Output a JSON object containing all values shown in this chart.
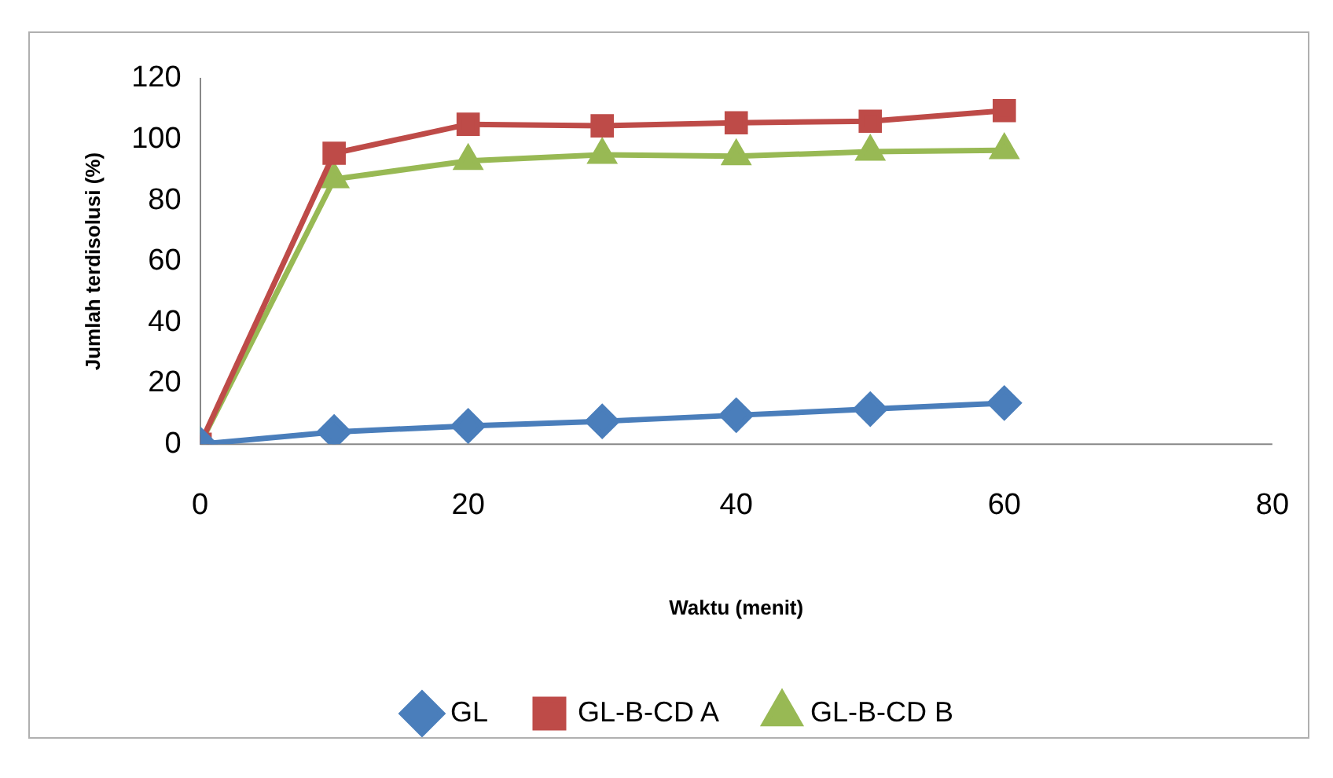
{
  "chart_data": {
    "type": "line",
    "xlabel": "Waktu (menit)",
    "ylabel": "Jumlah terdisolusi (%)",
    "x": [
      0,
      10,
      20,
      30,
      40,
      50,
      60
    ],
    "series": [
      {
        "name": "GL",
        "color": "#4a7ebb",
        "marker": "diamond",
        "values": [
          0,
          4,
          6,
          7.5,
          9.5,
          11.5,
          13.5
        ]
      },
      {
        "name": "GL-B-CD A",
        "color": "#be4b48",
        "marker": "square",
        "values": [
          0,
          95.5,
          105,
          104.5,
          105.5,
          106,
          109.5
        ]
      },
      {
        "name": "GL-B-CD B",
        "color": "#98b954",
        "marker": "triangle",
        "values": [
          0,
          87,
          93,
          95,
          94.5,
          96,
          96.5
        ]
      }
    ],
    "xlim": [
      0,
      80
    ],
    "xticks": [
      0,
      20,
      40,
      60,
      80
    ],
    "ylim": [
      0,
      120
    ],
    "yticks": [
      0,
      20,
      40,
      60,
      80,
      100,
      120
    ],
    "grid": false,
    "legend": "bottom",
    "line_style": "solid"
  }
}
